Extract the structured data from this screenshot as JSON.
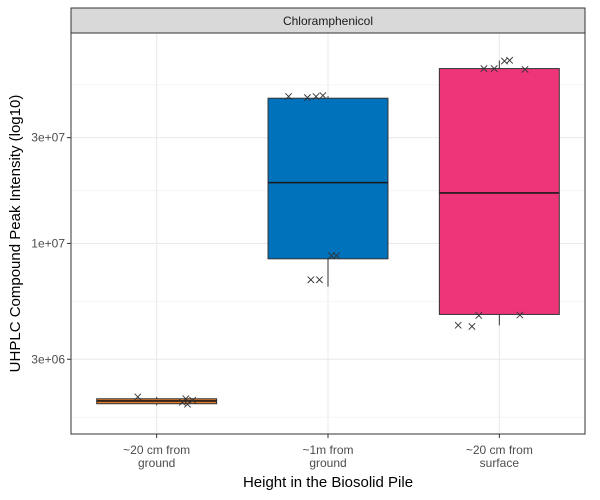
{
  "chart_data": {
    "type": "box",
    "facet_label": "Chloramphenicol",
    "xlabel": "Height in the Biosolid Pile",
    "ylabel": "UHPLC Compound Peak Intensity (log10)",
    "y_scale": "log10",
    "ylim": [
      1380000,
      89000000
    ],
    "y_ticks": [
      {
        "value": 3000000,
        "label": "3e+06"
      },
      {
        "value": 10000000,
        "label": "1e+07"
      },
      {
        "value": 30000000,
        "label": "3e+07"
      }
    ],
    "categories": [
      {
        "label_lines": [
          "~20 cm from",
          "ground"
        ],
        "color": "#E07B2C"
      },
      {
        "label_lines": [
          "~1m from",
          "ground"
        ],
        "color": "#0072BB"
      },
      {
        "label_lines": [
          "~20 cm from",
          "surface"
        ],
        "color": "#EE3579"
      }
    ],
    "boxes": [
      {
        "min": 1860000,
        "q1": 1890000,
        "median": 1945000,
        "q3": 1990000,
        "max": 2030000
      },
      {
        "min": 6380000,
        "q1": 8520000,
        "median": 18800000,
        "q3": 45200000,
        "max": 46200000
      },
      {
        "min": 4270000,
        "q1": 4780000,
        "median": 16900000,
        "q3": 61500000,
        "max": 66900000
      }
    ],
    "points": [
      [
        {
          "x": -0.11,
          "y": 2030000
        },
        {
          "x": 0.17,
          "y": 1990000
        },
        {
          "x": 0.21,
          "y": 1960000
        },
        {
          "x": 0.15,
          "y": 1920000
        },
        {
          "x": 0.18,
          "y": 1880000
        }
      ],
      [
        {
          "x": -0.23,
          "y": 46000000
        },
        {
          "x": -0.12,
          "y": 45500000
        },
        {
          "x": -0.07,
          "y": 46000000
        },
        {
          "x": -0.03,
          "y": 46500000
        },
        {
          "x": -0.1,
          "y": 6850000
        },
        {
          "x": -0.05,
          "y": 6850000
        },
        {
          "x": 0.02,
          "y": 8800000
        },
        {
          "x": 0.05,
          "y": 8800000
        }
      ],
      [
        {
          "x": -0.09,
          "y": 61500000
        },
        {
          "x": -0.03,
          "y": 61500000
        },
        {
          "x": 0.03,
          "y": 66500000
        },
        {
          "x": 0.06,
          "y": 67000000
        },
        {
          "x": 0.15,
          "y": 61000000
        },
        {
          "x": -0.24,
          "y": 4270000
        },
        {
          "x": -0.16,
          "y": 4220000
        },
        {
          "x": -0.12,
          "y": 4730000
        },
        {
          "x": 0.12,
          "y": 4750000
        }
      ]
    ]
  }
}
